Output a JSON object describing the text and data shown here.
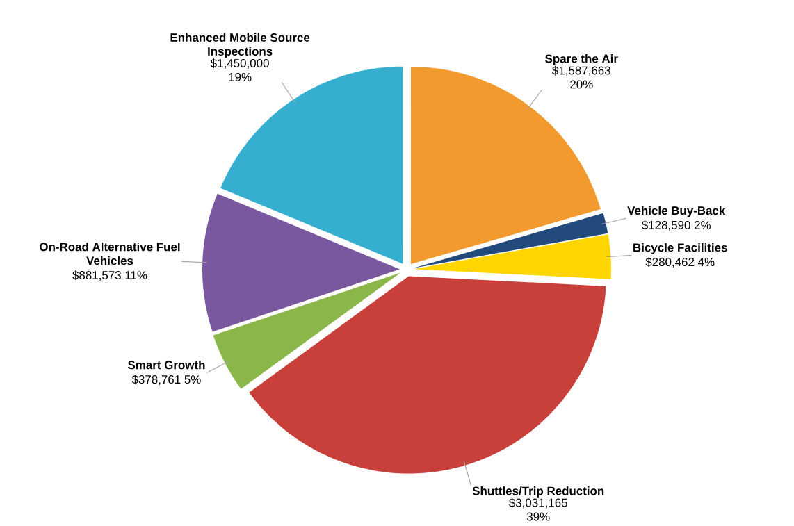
{
  "chart_data": {
    "type": "pie",
    "categories": [
      "Spare the Air",
      "Vehicle Buy-Back",
      "Bicycle Facilities",
      "Shuttles/Trip Reduction",
      "Smart Growth",
      "On-Road Alternative Fuel Vehicles",
      "Enhanced Mobile Source Inspections"
    ],
    "values": [
      1587663,
      128590,
      280462,
      3031165,
      378761,
      881573,
      1450000
    ],
    "value_labels": [
      "$1,587,663 20%",
      "$128,590 2%",
      "$280,462 4%",
      "$3,031,165 39%",
      "$378,761 5%",
      "$881,573 11%",
      "$1,450,000 19%"
    ],
    "colors": [
      "#f39a2e",
      "#234a7c",
      "#ffd500",
      "#c9403a",
      "#8ab64a",
      "#7a58a0",
      "#35aed0"
    ]
  }
}
